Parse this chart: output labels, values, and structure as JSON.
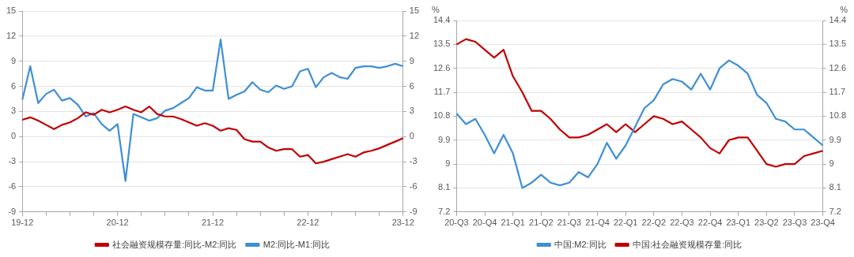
{
  "chart_data": [
    {
      "type": "line",
      "categories": [
        "19-12",
        null,
        null,
        null,
        null,
        null,
        null,
        null,
        null,
        null,
        null,
        null,
        "20-12",
        null,
        null,
        null,
        null,
        null,
        null,
        null,
        null,
        null,
        null,
        null,
        "21-12",
        null,
        null,
        null,
        null,
        null,
        null,
        null,
        null,
        null,
        null,
        null,
        "22-12",
        null,
        null,
        null,
        null,
        null,
        null,
        null,
        null,
        null,
        null,
        null,
        "23-12"
      ],
      "series": [
        {
          "name": "社会融资规模存量:同比-M2:同比",
          "color": "#c00000",
          "values": [
            2.0,
            2.3,
            1.9,
            1.4,
            0.9,
            1.4,
            1.7,
            2.2,
            2.9,
            2.6,
            3.2,
            2.9,
            3.2,
            3.6,
            3.2,
            2.9,
            3.6,
            2.7,
            2.4,
            2.4,
            2.1,
            1.7,
            1.3,
            1.6,
            1.3,
            0.7,
            1.0,
            0.8,
            -0.3,
            -0.6,
            -0.6,
            -1.3,
            -1.7,
            -1.5,
            -1.5,
            -2.4,
            -2.2,
            -3.2,
            -3.0,
            -2.7,
            -2.4,
            -2.1,
            -2.4,
            -1.9,
            -1.7,
            -1.4,
            -1.0,
            -0.6,
            -0.2
          ]
        },
        {
          "name": "M2:同比-M1:同比",
          "color": "#3e8fd6",
          "values": [
            4.4,
            8.4,
            4.0,
            5.1,
            5.6,
            4.3,
            4.6,
            3.8,
            2.4,
            2.8,
            1.5,
            0.7,
            1.5,
            -5.3,
            2.7,
            2.3,
            1.9,
            2.2,
            3.1,
            3.4,
            4.0,
            4.6,
            5.9,
            5.5,
            5.5,
            11.6,
            4.5,
            5.0,
            5.4,
            6.5,
            5.6,
            5.3,
            6.1,
            5.7,
            6.0,
            7.8,
            8.1,
            5.9,
            7.1,
            7.6,
            7.1,
            6.9,
            8.2,
            8.4,
            8.4,
            8.2,
            8.4,
            8.7,
            8.4
          ]
        }
      ],
      "ylim": [
        -9,
        15
      ],
      "yticks": [
        -9,
        -6,
        -3,
        0,
        3,
        6,
        9,
        12,
        15
      ],
      "y2lim": [
        -9,
        15
      ],
      "y2ticks": [
        -9,
        -6,
        -3,
        0,
        3,
        6,
        9,
        12,
        15
      ],
      "grid": "y",
      "legend": "bottom",
      "marker": "none"
    },
    {
      "type": "line",
      "categories": [
        "20-Q3",
        null,
        null,
        "20-Q4",
        null,
        null,
        "21-Q1",
        null,
        null,
        "21-Q2",
        null,
        null,
        "21-Q3",
        null,
        null,
        "21-Q4",
        null,
        null,
        "22-Q1",
        null,
        null,
        "22-Q2",
        null,
        null,
        "22-Q3",
        null,
        null,
        "22-Q4",
        null,
        null,
        "23-Q1",
        null,
        null,
        "23-Q2",
        null,
        null,
        "23-Q3",
        null,
        null,
        "23-Q4"
      ],
      "series": [
        {
          "name": "中国:M2:同比",
          "color": "#3e8fd6",
          "values": [
            10.9,
            10.5,
            10.7,
            10.1,
            9.4,
            10.1,
            9.4,
            8.1,
            8.3,
            8.6,
            8.3,
            8.2,
            8.3,
            8.7,
            8.5,
            9.0,
            9.8,
            9.2,
            9.7,
            10.4,
            11.1,
            11.4,
            12.0,
            12.2,
            12.1,
            11.8,
            12.4,
            11.8,
            12.6,
            12.9,
            12.7,
            12.4,
            11.6,
            11.3,
            10.7,
            10.6,
            10.3,
            10.3,
            10.0,
            9.7
          ]
        },
        {
          "name": "中国:社会融资规模存量:同比",
          "color": "#c00000",
          "values": [
            13.5,
            13.7,
            13.6,
            13.3,
            13.0,
            13.3,
            12.3,
            11.7,
            11.0,
            11.0,
            10.7,
            10.3,
            10.0,
            10.0,
            10.1,
            10.3,
            10.5,
            10.2,
            10.5,
            10.2,
            10.5,
            10.8,
            10.7,
            10.5,
            10.6,
            10.3,
            10.0,
            9.6,
            9.4,
            9.9,
            10.0,
            10.0,
            9.5,
            9.0,
            8.9,
            9.0,
            9.0,
            9.3,
            9.4,
            9.5
          ]
        }
      ],
      "ylabel": "%",
      "y2label": "%",
      "ylim": [
        7.2,
        14.4
      ],
      "yticks": [
        7.2,
        8.1,
        9,
        9.9,
        10.8,
        11.7,
        12.6,
        13.5,
        14.4
      ],
      "y2lim": [
        7.2,
        14.4
      ],
      "y2ticks": [
        7.2,
        8.1,
        9,
        9.9,
        10.8,
        11.7,
        12.6,
        13.5,
        14.4
      ],
      "grid": "y",
      "legend": "bottom",
      "marker": "none"
    }
  ]
}
